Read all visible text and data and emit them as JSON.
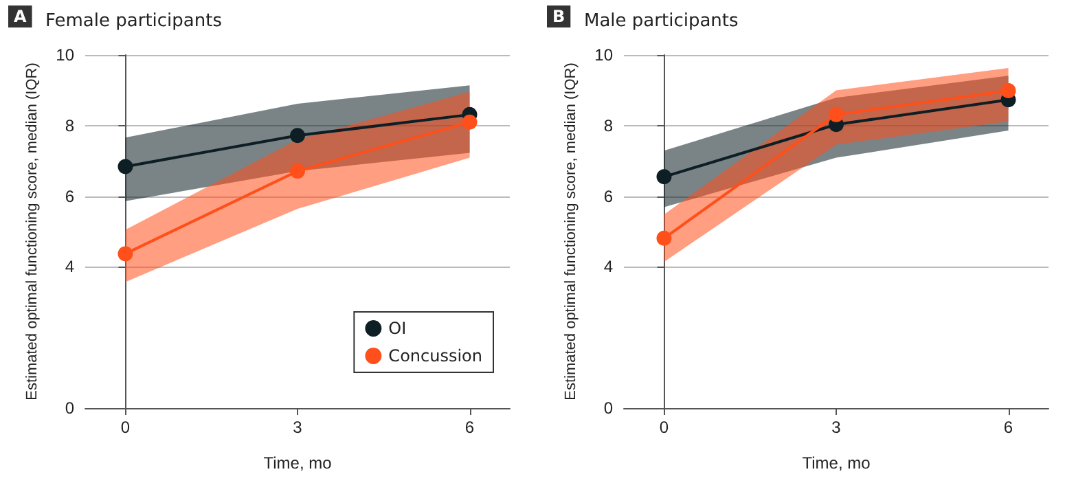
{
  "chart_data": [
    {
      "type": "line",
      "title": "Female participants",
      "annotations": [
        "A"
      ],
      "xlabel": "Time, mo",
      "ylabel": "Estimated optimal functioning score, median (IQR)",
      "x": [
        0,
        3,
        6
      ],
      "xlim": [
        -0.7,
        6.7
      ],
      "xticks": [
        0,
        3,
        6
      ],
      "ylim": [
        0,
        10
      ],
      "yticks": [
        0,
        4,
        6,
        8,
        10
      ],
      "grid": "y",
      "legend": "bottom right",
      "marker": "circle",
      "line_style": "solid",
      "series": [
        {
          "name": "OI",
          "color": "#0d1f24",
          "values": [
            6.84,
            7.72,
            8.31
          ],
          "lower": [
            5.86,
            6.71,
            7.23
          ],
          "upper": [
            7.66,
            8.62,
            9.14
          ]
        },
        {
          "name": "Concussion",
          "color": "#ff4f1a",
          "values": [
            4.37,
            6.71,
            8.1
          ],
          "lower": [
            3.57,
            5.64,
            7.09
          ],
          "upper": [
            5.05,
            7.6,
            8.96
          ]
        }
      ]
    },
    {
      "type": "line",
      "title": "Male participants",
      "annotations": [
        "B"
      ],
      "xlabel": "Time, mo",
      "ylabel": "Estimated optimal functioning score, median (IQR)",
      "x": [
        0,
        3,
        6
      ],
      "xlim": [
        -0.7,
        6.7
      ],
      "xticks": [
        0,
        3,
        6
      ],
      "ylim": [
        0,
        10
      ],
      "yticks": [
        0,
        4,
        6,
        8,
        10
      ],
      "grid": "y",
      "legend": false,
      "marker": "circle",
      "line_style": "solid",
      "series": [
        {
          "color": "#0d1f24",
          "values": [
            6.55,
            8.03,
            8.73
          ],
          "lower": [
            5.69,
            7.09,
            7.86
          ],
          "upper": [
            7.29,
            8.79,
            9.41
          ]
        },
        {
          "color": "#ff4f1a",
          "values": [
            4.81,
            8.31,
            8.99
          ],
          "lower": [
            4.14,
            7.46,
            8.12
          ],
          "upper": [
            5.48,
            9.0,
            9.63
          ]
        }
      ]
    }
  ]
}
